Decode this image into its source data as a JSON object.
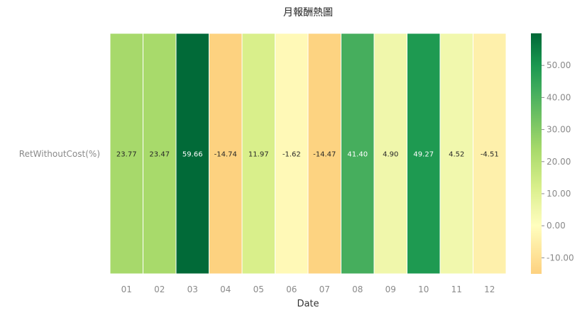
{
  "chart_data": {
    "type": "heatmap",
    "title": "月報酬熱圖",
    "xlabel": "Date",
    "ylabel": "",
    "row_labels": [
      "RetWithoutCost(%)"
    ],
    "categories": [
      "01",
      "02",
      "03",
      "04",
      "05",
      "06",
      "07",
      "08",
      "09",
      "10",
      "11",
      "12"
    ],
    "values": [
      23.77,
      23.47,
      59.66,
      -14.74,
      11.97,
      -1.62,
      -14.47,
      41.4,
      4.9,
      49.27,
      4.52,
      -4.51
    ],
    "value_labels": [
      "23.77",
      "23.47",
      "59.66",
      "-14.74",
      "11.97",
      "-1.62",
      "-14.47",
      "41.40",
      "4.90",
      "49.27",
      "4.52",
      "-4.51"
    ],
    "colormap": "RdYlGn",
    "colorbar": {
      "range": [
        -15,
        60
      ],
      "ticks": [
        -10,
        0,
        10,
        20,
        30,
        40,
        50
      ],
      "tick_labels": [
        "-10.00",
        "0.00",
        "10.00",
        "20.00",
        "30.00",
        "40.00",
        "50.00"
      ]
    },
    "colors": {
      "stops": [
        "#fdd17f",
        "#fffebe",
        "#a6d96a",
        "#006837"
      ]
    }
  }
}
